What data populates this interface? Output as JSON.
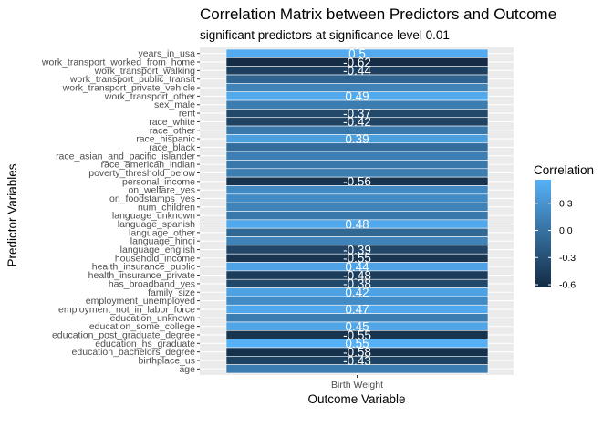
{
  "chart_data": {
    "type": "heatmap",
    "title": "Correlation Matrix between Predictors and Outcome",
    "subtitle": "significant predictors at significance level 0.01",
    "xlabel": "Outcome Variable",
    "ylabel": "Predictor Variables",
    "x_categories": [
      "Birth Weight"
    ],
    "rows": [
      {
        "name": "years_in_usa",
        "value": 0.5,
        "label": "0.5"
      },
      {
        "name": "work_transport_worked_from_home",
        "value": -0.62,
        "label": "-0.62"
      },
      {
        "name": "work_transport_walking",
        "value": -0.44,
        "label": "-0.44"
      },
      {
        "name": "work_transport_public_transit",
        "value": -0.12,
        "label": ""
      },
      {
        "name": "work_transport_private_vehicle",
        "value": 0.15,
        "label": ""
      },
      {
        "name": "work_transport_other",
        "value": 0.49,
        "label": "0.49"
      },
      {
        "name": "sex_male",
        "value": 0.1,
        "label": ""
      },
      {
        "name": "rent",
        "value": -0.37,
        "label": "-0.37"
      },
      {
        "name": "race_white",
        "value": -0.42,
        "label": "-0.42"
      },
      {
        "name": "race_other",
        "value": 0.05,
        "label": ""
      },
      {
        "name": "race_hispanic",
        "value": 0.39,
        "label": "0.39"
      },
      {
        "name": "race_black",
        "value": -0.05,
        "label": ""
      },
      {
        "name": "race_asian_and_pacific_islander",
        "value": 0.12,
        "label": ""
      },
      {
        "name": "race_american_indian",
        "value": 0.05,
        "label": ""
      },
      {
        "name": "poverty_threshold_below",
        "value": 0.1,
        "label": ""
      },
      {
        "name": "personal_income",
        "value": -0.56,
        "label": "-0.56"
      },
      {
        "name": "on_welfare_yes",
        "value": 0.2,
        "label": ""
      },
      {
        "name": "on_foodstamps_yes",
        "value": 0.22,
        "label": ""
      },
      {
        "name": "num_children",
        "value": 0.15,
        "label": ""
      },
      {
        "name": "language_unknown",
        "value": 0.05,
        "label": ""
      },
      {
        "name": "language_spanish",
        "value": 0.48,
        "label": "0.48"
      },
      {
        "name": "language_other",
        "value": -0.1,
        "label": ""
      },
      {
        "name": "language_hindi",
        "value": 0.15,
        "label": ""
      },
      {
        "name": "language_english",
        "value": -0.39,
        "label": "-0.39"
      },
      {
        "name": "household_income",
        "value": -0.55,
        "label": "-0.55"
      },
      {
        "name": "health_insurance_public",
        "value": 0.44,
        "label": "0.44"
      },
      {
        "name": "health_insurance_private",
        "value": -0.48,
        "label": "-0.48"
      },
      {
        "name": "has_broadband_yes",
        "value": -0.38,
        "label": "-0.38"
      },
      {
        "name": "family_size",
        "value": 0.42,
        "label": "0.42"
      },
      {
        "name": "employment_unemployed",
        "value": 0.22,
        "label": ""
      },
      {
        "name": "employment_not_in_labor_force",
        "value": 0.47,
        "label": "0.47"
      },
      {
        "name": "education_unknown",
        "value": 0.1,
        "label": ""
      },
      {
        "name": "education_some_college",
        "value": 0.45,
        "label": "0.45"
      },
      {
        "name": "education_post_graduate_degree",
        "value": -0.55,
        "label": "-0.55"
      },
      {
        "name": "education_hs_graduate",
        "value": 0.55,
        "label": "0.55"
      },
      {
        "name": "education_bachelors_degree",
        "value": -0.58,
        "label": "-0.58"
      },
      {
        "name": "birthplace_us",
        "value": -0.43,
        "label": "-0.43"
      },
      {
        "name": "age",
        "value": 0.1,
        "label": ""
      }
    ],
    "legend": {
      "title": "Correlation",
      "ticks": [
        0.3,
        0.0,
        -0.3,
        -0.6
      ],
      "tick_labels": [
        "0.3",
        "0.0",
        "-0.3",
        "-0.6"
      ],
      "range": [
        -0.63,
        0.56
      ],
      "low_color": "#132B43",
      "high_color": "#56B1F7",
      "placement": "right"
    },
    "panel_background": "#EBEBEB",
    "grid": true
  }
}
